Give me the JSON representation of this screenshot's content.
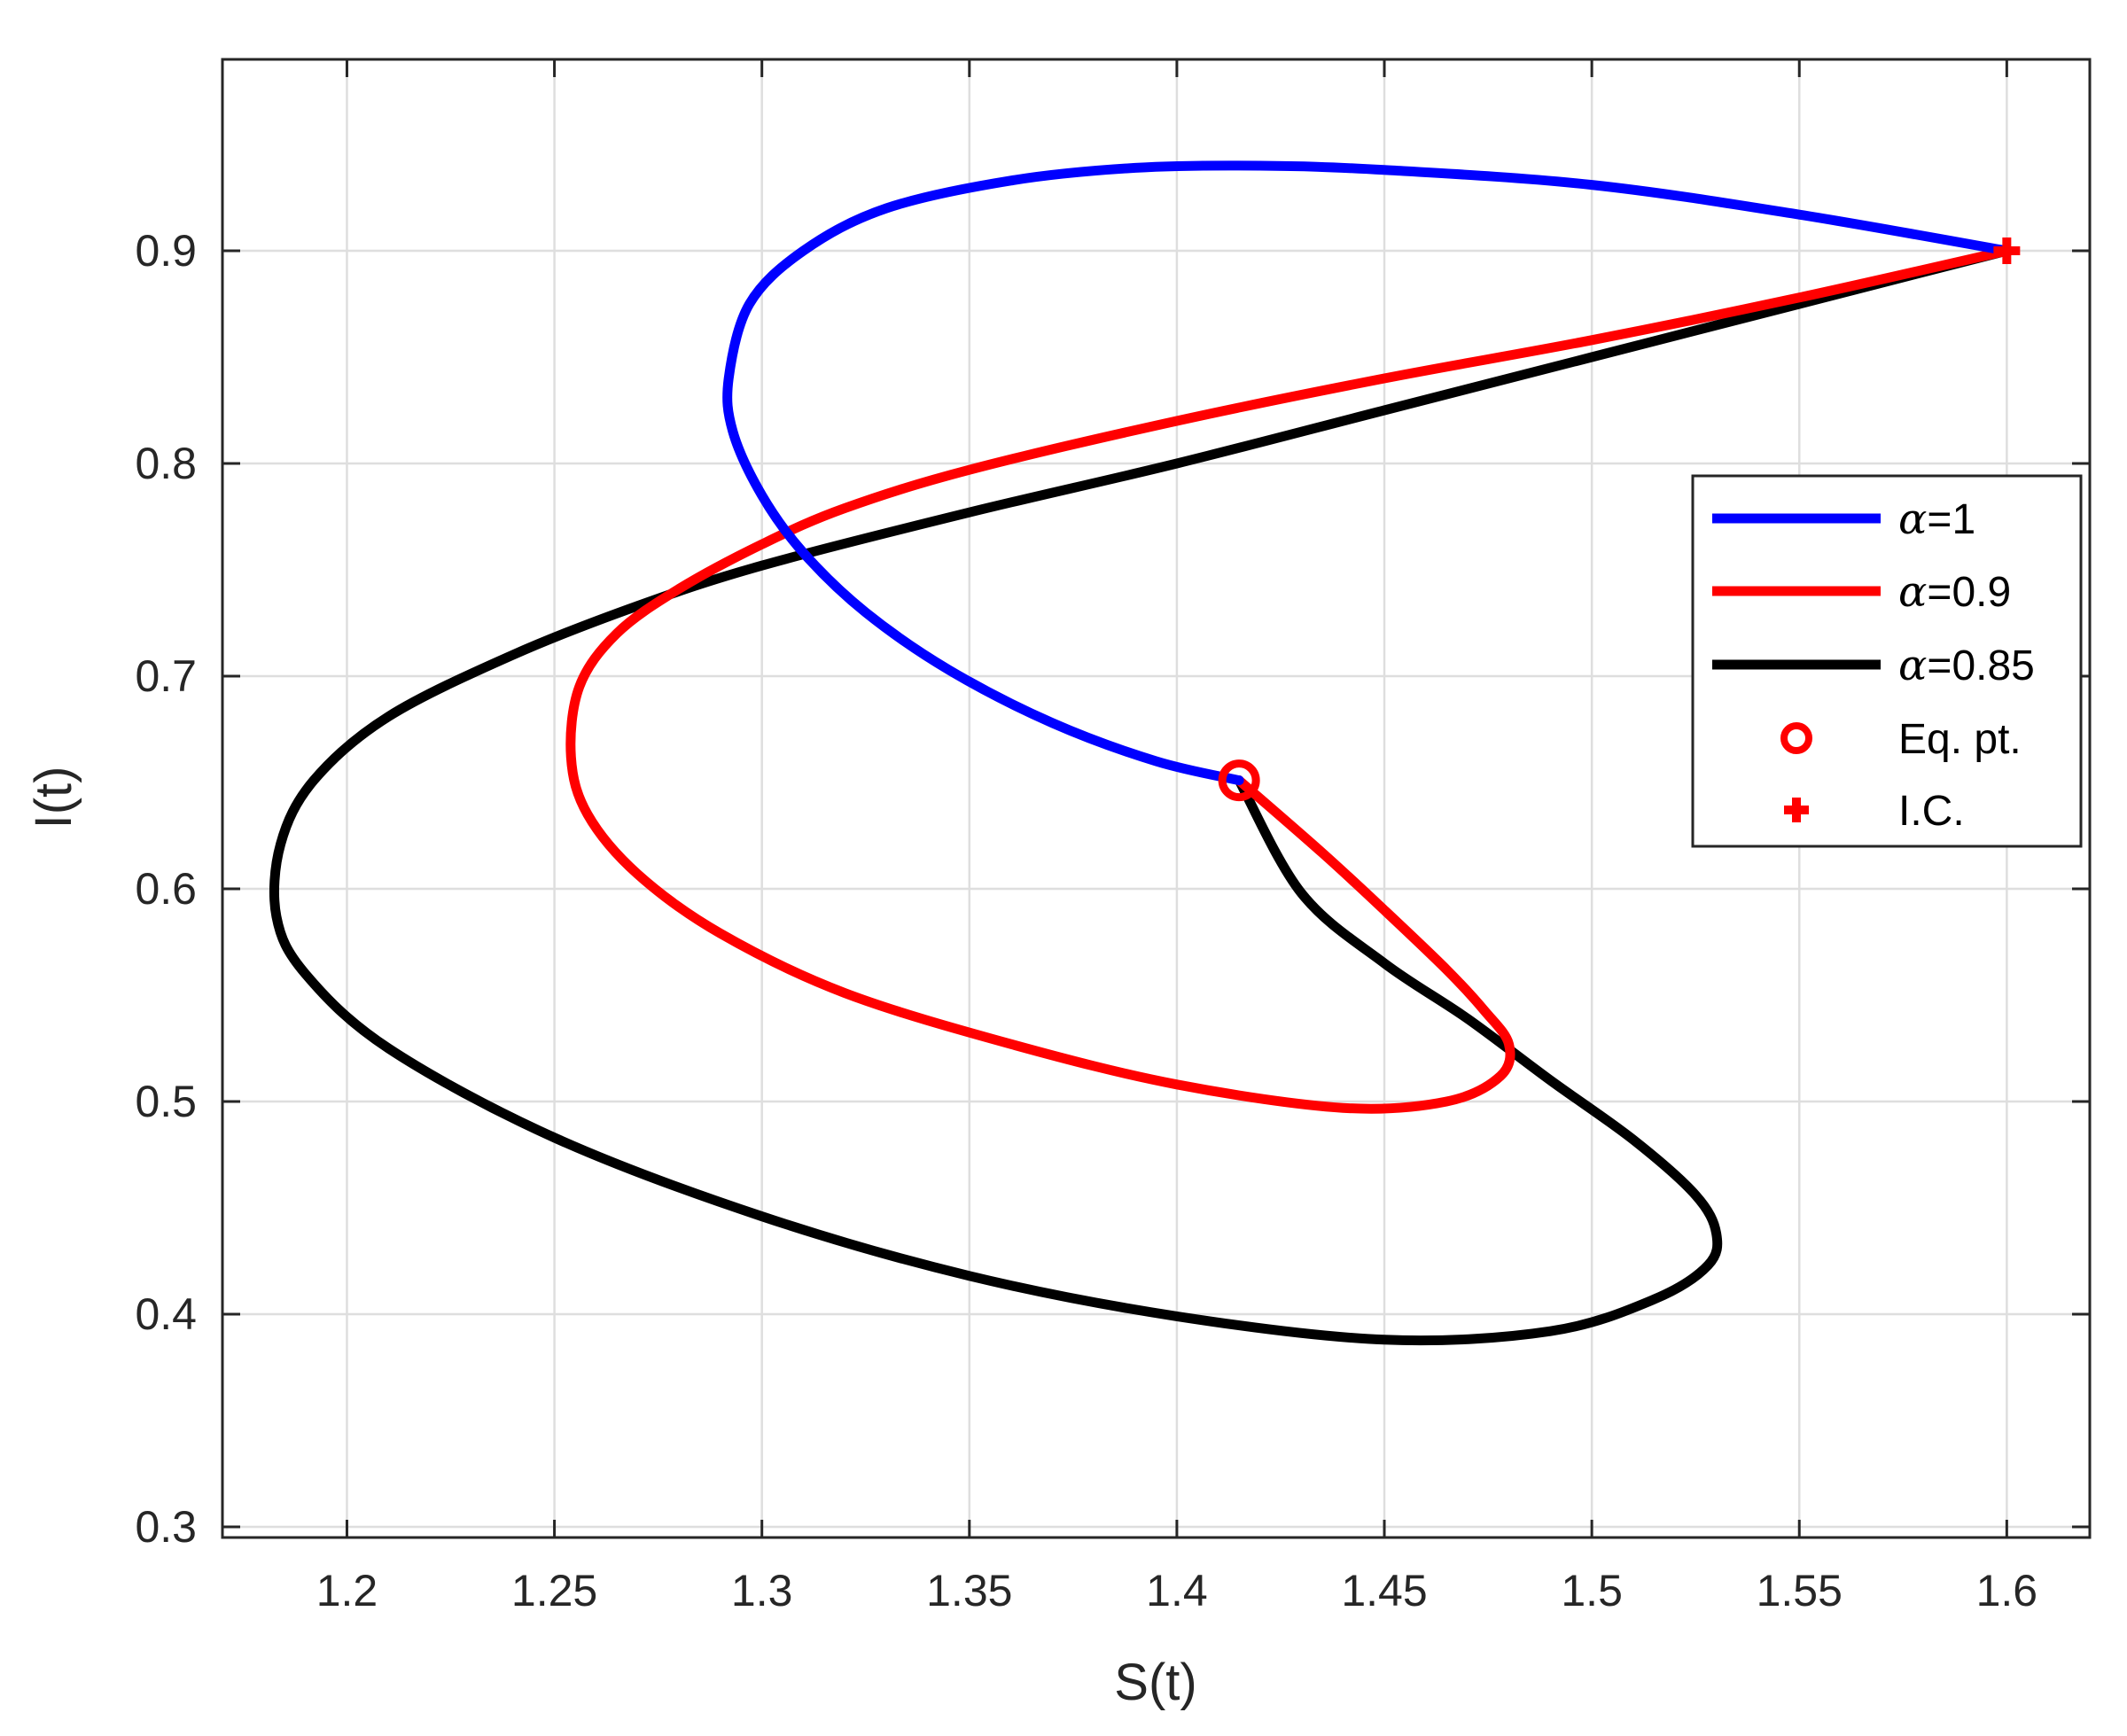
{
  "chart_data": {
    "type": "line",
    "title": "",
    "xlabel": "S(t)",
    "ylabel": "I(t)",
    "xlim": [
      1.17,
      1.62
    ],
    "ylim": [
      0.295,
      0.99
    ],
    "xticks": [
      1.2,
      1.25,
      1.3,
      1.35,
      1.4,
      1.45,
      1.5,
      1.55,
      1.6
    ],
    "xtick_labels": [
      "1.2",
      "1.25",
      "1.3",
      "1.35",
      "1.4",
      "1.45",
      "1.5",
      "1.55",
      "1.6"
    ],
    "yticks": [
      0.3,
      0.4,
      0.5,
      0.6,
      0.7,
      0.8,
      0.9
    ],
    "ytick_labels": [
      "0.3",
      "0.4",
      "0.5",
      "0.6",
      "0.7",
      "0.8",
      "0.9"
    ],
    "grid": true,
    "legend_position": "right",
    "series": [
      {
        "name": "=1",
        "alpha_symbol": "α",
        "color": "#0000ff",
        "x": [
          1.6,
          1.55,
          1.5,
          1.45,
          1.42,
          1.39,
          1.36,
          1.33,
          1.31,
          1.297,
          1.292,
          1.293,
          1.3,
          1.31,
          1.325,
          1.345,
          1.37,
          1.395,
          1.415
        ],
        "y": [
          0.9,
          0.917,
          0.931,
          0.938,
          0.94,
          0.939,
          0.933,
          0.92,
          0.9,
          0.875,
          0.84,
          0.815,
          0.785,
          0.758,
          0.73,
          0.703,
          0.678,
          0.66,
          0.651
        ]
      },
      {
        "name": "=0.9",
        "alpha_symbol": "α",
        "color": "#ff0000",
        "x": [
          1.6,
          1.55,
          1.5,
          1.45,
          1.4,
          1.35,
          1.32,
          1.3,
          1.28,
          1.265,
          1.256,
          1.254,
          1.258,
          1.27,
          1.29,
          1.32,
          1.36,
          1.4,
          1.44,
          1.465,
          1.478,
          1.48,
          1.474,
          1.465,
          1.45,
          1.435,
          1.415
        ],
        "y": [
          0.9,
          0.878,
          0.858,
          0.84,
          0.82,
          0.797,
          0.779,
          0.762,
          0.741,
          0.72,
          0.695,
          0.662,
          0.635,
          0.607,
          0.579,
          0.551,
          0.527,
          0.508,
          0.497,
          0.5,
          0.512,
          0.527,
          0.543,
          0.562,
          0.59,
          0.617,
          0.651
        ]
      },
      {
        "name": "=0.85",
        "alpha_symbol": "α",
        "color": "#000000",
        "x": [
          1.6,
          1.55,
          1.5,
          1.45,
          1.4,
          1.35,
          1.3,
          1.27,
          1.24,
          1.21,
          1.192,
          1.184,
          1.183,
          1.19,
          1.21,
          1.25,
          1.3,
          1.35,
          1.4,
          1.45,
          1.49,
          1.515,
          1.528,
          1.53,
          1.525,
          1.51,
          1.49,
          1.47,
          1.45,
          1.43,
          1.415
        ],
        "y": [
          0.9,
          0.875,
          0.85,
          0.825,
          0.8,
          0.777,
          0.752,
          0.733,
          0.71,
          0.681,
          0.651,
          0.621,
          0.587,
          0.56,
          0.525,
          0.483,
          0.446,
          0.418,
          0.399,
          0.388,
          0.392,
          0.407,
          0.423,
          0.438,
          0.456,
          0.482,
          0.51,
          0.539,
          0.565,
          0.598,
          0.651
        ]
      }
    ],
    "markers": [
      {
        "name": "Eq. pt.",
        "symbol": "circle",
        "color": "#ff0000",
        "x": 1.415,
        "y": 0.651
      },
      {
        "name": "I.C.",
        "symbol": "plus",
        "color": "#ff0000",
        "x": 1.6,
        "y": 0.9
      }
    ]
  }
}
